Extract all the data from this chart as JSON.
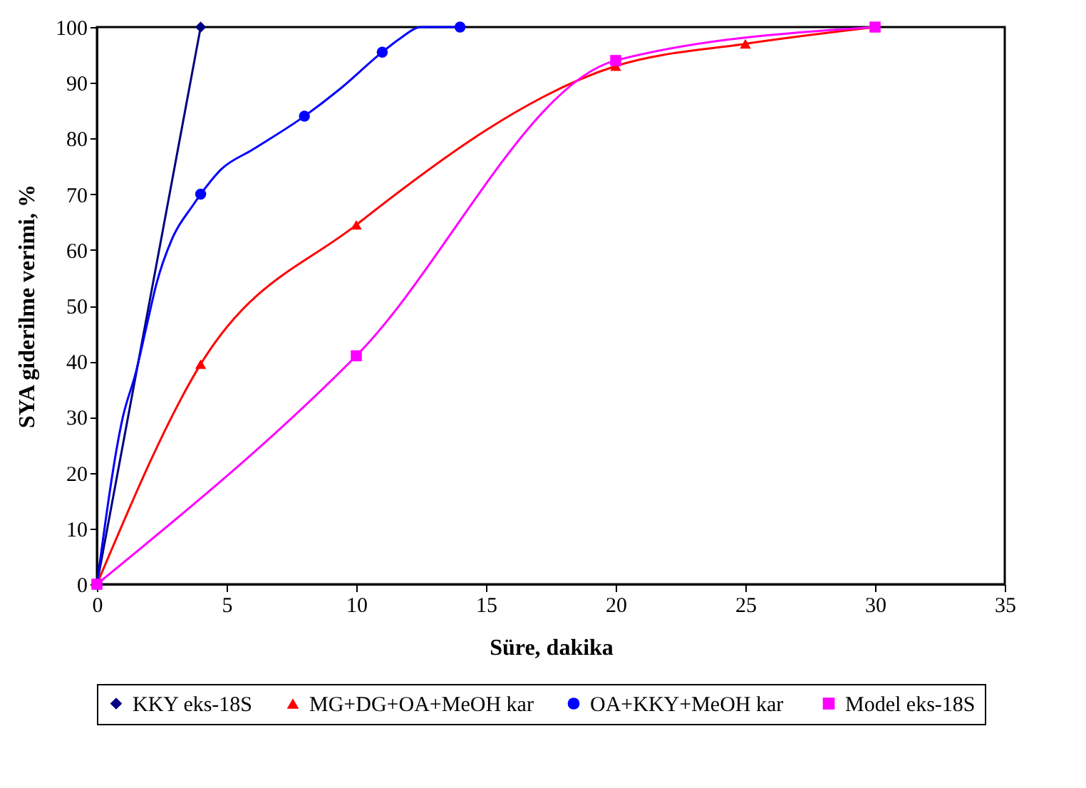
{
  "chart_data": {
    "type": "line",
    "xlabel": "Süre, dakika",
    "ylabel": "SYA giderilme verimi, %",
    "xlim": [
      0,
      35
    ],
    "xticks": [
      0,
      5,
      10,
      15,
      20,
      25,
      30,
      35
    ],
    "ylim": [
      0,
      100
    ],
    "yticks": [
      0,
      10,
      20,
      30,
      40,
      50,
      60,
      70,
      80,
      90,
      100
    ],
    "grid": false,
    "legend": "bottom",
    "line_style": "solid",
    "series": [
      {
        "name": "KKY eks-18S",
        "type": "line",
        "marker": "diamond",
        "color": "#000080",
        "x": [
          0,
          4
        ],
        "values": [
          0,
          100
        ]
      },
      {
        "name": "MG+DG+OA+MeOH kar",
        "type": "line",
        "marker": "triangle",
        "color": "#ff0000",
        "x": [
          0,
          4,
          10,
          20,
          25,
          30
        ],
        "values": [
          0,
          39.5,
          64.5,
          93,
          97,
          100
        ]
      },
      {
        "name": "OA+KKY+MeOH  kar",
        "type": "scatter",
        "marker": "circle",
        "color": "#0000ff",
        "x": [
          0,
          4,
          8,
          11,
          14
        ],
        "values": [
          0,
          70,
          84,
          95.5,
          100
        ]
      },
      {
        "name": "Model eks-18S",
        "type": "line",
        "marker": "square",
        "color": "#ff00ff",
        "x": [
          0,
          10,
          20,
          30
        ],
        "values": [
          0,
          41,
          94,
          100
        ]
      },
      {
        "type": "line",
        "marker": "none",
        "color": "#0000ff",
        "x": [
          0,
          1,
          1.5,
          1.9,
          2.3,
          2.9,
          3.7,
          4,
          4.8,
          6,
          8,
          9.4,
          11,
          11.7,
          12.5,
          14
        ],
        "values": [
          0,
          30,
          38,
          46,
          54,
          62,
          68,
          70,
          74.5,
          78,
          84,
          89,
          95.5,
          98,
          100,
          100
        ]
      }
    ]
  }
}
